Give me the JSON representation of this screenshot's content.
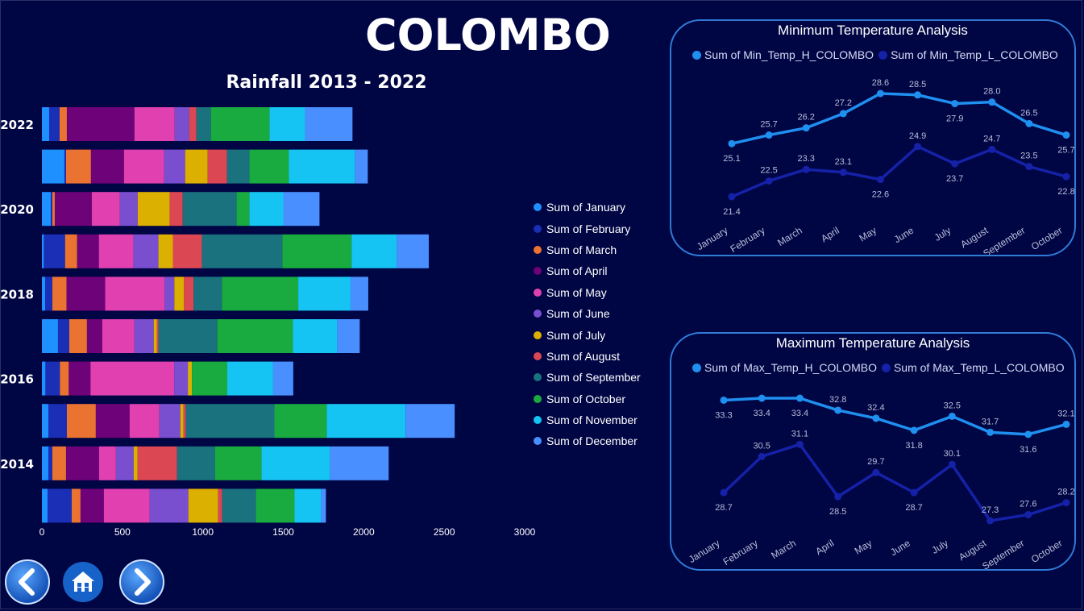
{
  "page": {
    "title": "COLOMBO"
  },
  "nav": {
    "back_icon": "chevron-left-icon",
    "home_icon": "home-icon",
    "forward_icon": "chevron-right-icon"
  },
  "chart_data": [
    {
      "type": "bar",
      "orientation": "horizontal",
      "stacked": true,
      "title": "Rainfall 2013 - 2022",
      "categories": [
        "2022",
        "2021",
        "2020",
        "2019",
        "2018",
        "2017",
        "2016",
        "2015",
        "2014",
        "2013"
      ],
      "category_tick_labels": [
        "2022",
        "",
        "2020",
        "",
        "2018",
        "",
        "2016",
        "",
        "2014",
        ""
      ],
      "xlim": [
        0,
        3000
      ],
      "x_ticks": [
        "0",
        "500",
        "1000",
        "1500",
        "2000",
        "2500",
        "3000"
      ],
      "legend_position": "right",
      "series": [
        {
          "name": "Sum of January",
          "color": "#1e90ff",
          "values": [
            45,
            140,
            55,
            12,
            20,
            100,
            22,
            40,
            40,
            35
          ]
        },
        {
          "name": "Sum of February",
          "color": "#1a2fb5",
          "values": [
            65,
            10,
            10,
            132,
            45,
            70,
            90,
            115,
            25,
            150
          ]
        },
        {
          "name": "Sum of March",
          "color": "#ea7332",
          "values": [
            45,
            155,
            15,
            75,
            88,
            110,
            55,
            180,
            85,
            55
          ]
        },
        {
          "name": "Sum of April",
          "color": "#6e0278",
          "values": [
            420,
            205,
            230,
            135,
            240,
            95,
            135,
            210,
            205,
            145
          ]
        },
        {
          "name": "Sum of May",
          "color": "#e040b0",
          "values": [
            250,
            250,
            175,
            215,
            370,
            200,
            520,
            185,
            105,
            285
          ]
        },
        {
          "name": "Sum of June",
          "color": "#7a4fcf",
          "values": [
            90,
            130,
            110,
            155,
            60,
            120,
            85,
            130,
            110,
            240
          ]
        },
        {
          "name": "Sum of July",
          "color": "#dcb000",
          "values": [
            0,
            140,
            200,
            90,
            60,
            20,
            25,
            20,
            25,
            185
          ]
        },
        {
          "name": "Sum of August",
          "color": "#dc4754",
          "values": [
            45,
            120,
            80,
            180,
            60,
            10,
            0,
            15,
            245,
            25
          ]
        },
        {
          "name": "Sum of September",
          "color": "#19727d",
          "values": [
            90,
            140,
            335,
            500,
            175,
            365,
            0,
            550,
            235,
            210
          ]
        },
        {
          "name": "Sum of October",
          "color": "#1aab40",
          "values": [
            365,
            245,
            80,
            430,
            475,
            470,
            220,
            325,
            290,
            240
          ]
        },
        {
          "name": "Sum of November",
          "color": "#15c4f2",
          "values": [
            220,
            410,
            210,
            280,
            325,
            275,
            285,
            490,
            425,
            165
          ]
        },
        {
          "name": "Sum of December",
          "color": "#4a8fff",
          "values": [
            295,
            80,
            225,
            200,
            110,
            140,
            125,
            305,
            365,
            30
          ]
        }
      ]
    },
    {
      "type": "line",
      "title": "Minimum Temperature Analysis",
      "categories": [
        "January",
        "February",
        "March",
        "April",
        "May",
        "June",
        "July",
        "August",
        "September",
        "October"
      ],
      "legend_position": "top-left",
      "series": [
        {
          "name": "Sum of Min_Temp_H_COLOMBO",
          "color": "#1f8ff0",
          "values": [
            25.1,
            25.7,
            26.2,
            27.2,
            28.6,
            28.5,
            27.9,
            28.0,
            26.5,
            25.7
          ]
        },
        {
          "name": "Sum of Min_Temp_L_COLOMBO",
          "color": "#1522a8",
          "values": [
            21.4,
            22.5,
            23.3,
            23.1,
            22.6,
            24.9,
            23.7,
            24.7,
            23.5,
            22.8
          ]
        }
      ]
    },
    {
      "type": "line",
      "title": "Maximum Temperature Analysis",
      "categories": [
        "January",
        "February",
        "March",
        "April",
        "May",
        "June",
        "July",
        "August",
        "September",
        "October"
      ],
      "legend_position": "top-left",
      "series": [
        {
          "name": "Sum of Max_Temp_H_COLOMBO",
          "color": "#1f8ff0",
          "values": [
            33.3,
            33.4,
            33.4,
            32.8,
            32.4,
            31.8,
            32.5,
            31.7,
            31.6,
            32.1
          ]
        },
        {
          "name": "Sum of Max_Temp_L_COLOMBO",
          "color": "#1522a8",
          "values": [
            28.7,
            30.5,
            31.1,
            28.5,
            29.7,
            28.7,
            30.1,
            27.3,
            27.6,
            28.2
          ]
        }
      ]
    }
  ]
}
